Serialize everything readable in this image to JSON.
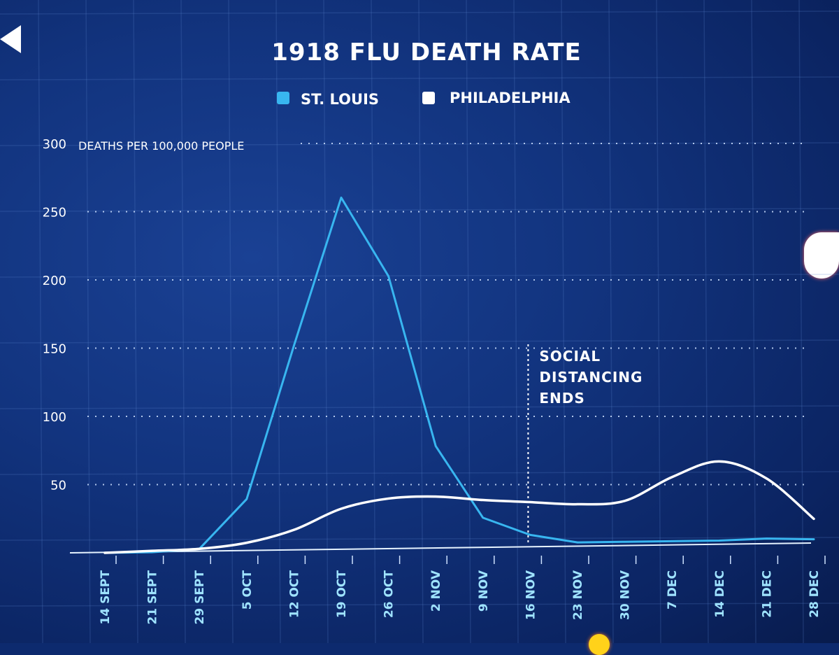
{
  "chart_data": {
    "type": "line",
    "title": "1918 FLU DEATH RATE",
    "ylabel": "DEATHS PER 100,000 PEOPLE",
    "xlabel": "",
    "ylim": [
      0,
      300
    ],
    "yticks": [
      50,
      100,
      150,
      200,
      250,
      300
    ],
    "x_label_list": [
      "14 SEPT",
      "21 SEPT",
      "29 SEPT",
      "5 OCT",
      "12 OCT",
      "19 OCT",
      "26 OCT",
      "2 NOV",
      "9 NOV",
      "16 NOV",
      "23 NOV",
      "30 NOV",
      "7 DEC",
      "14 DEC",
      "21 DEC",
      "28 DEC"
    ],
    "series": [
      {
        "name": "ST. LOUIS",
        "color": "#38b6f0",
        "values": [
          0,
          0,
          2,
          38,
          150,
          258,
          200,
          75,
          22,
          9,
          3,
          3,
          3,
          3,
          4,
          3
        ]
      },
      {
        "name": "PHILADELPHIA",
        "color": "#ffffff",
        "values": [
          0,
          1,
          2,
          6,
          15,
          30,
          37,
          38,
          35,
          33,
          31,
          33,
          50,
          61,
          48,
          18
        ]
      }
    ],
    "annotations": [
      {
        "text": [
          "SOCIAL",
          "DISTANCING",
          "ENDS"
        ],
        "x": "16 NOV"
      }
    ],
    "legend": "top-center",
    "grid": true
  },
  "colors": {
    "background": "#12347f",
    "st_louis": "#38b6f0",
    "philadelphia": "#ffffff",
    "axis": "#e6f3ff"
  }
}
